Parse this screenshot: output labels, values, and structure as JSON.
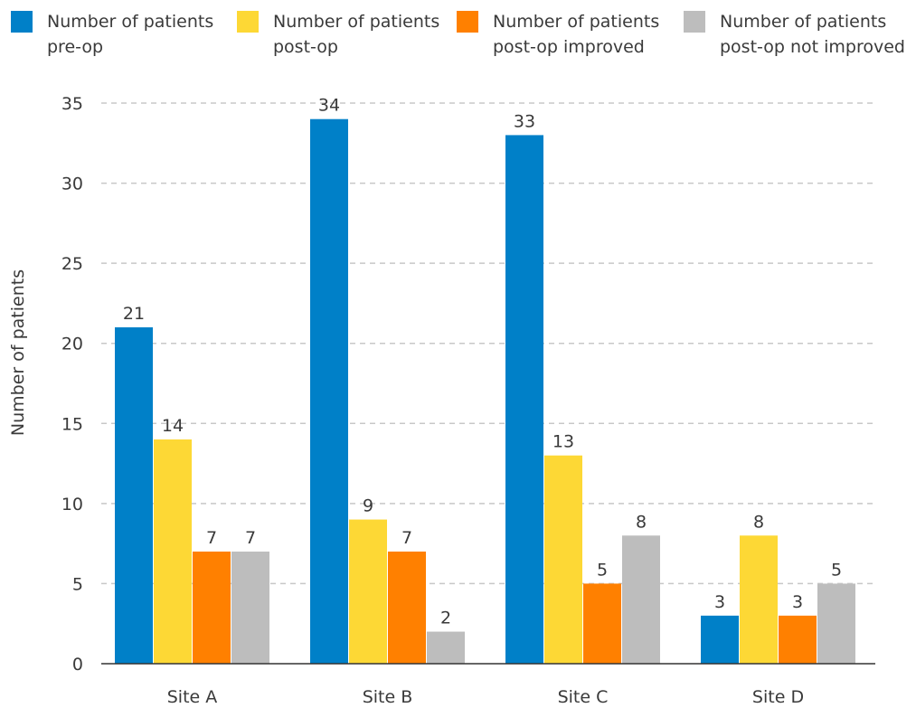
{
  "legend": {
    "items": [
      {
        "line1": "Number of patients",
        "line2": "pre-op",
        "color": "#0080C8"
      },
      {
        "line1": "Number of patients",
        "line2": "post-op",
        "color": "#FDD835"
      },
      {
        "line1": "Number of patients",
        "line2": "post-op improved",
        "color": "#FF8000"
      },
      {
        "line1": "Number of patients",
        "line2": "post-op not improved",
        "color": "#BDBDBD"
      }
    ]
  },
  "chart_data": {
    "type": "bar",
    "categories": [
      "Site A",
      "Site B",
      "Site C",
      "Site D"
    ],
    "series": [
      {
        "name": "Number of patients pre-op",
        "color": "#0080C8",
        "values": [
          21,
          34,
          33,
          3
        ]
      },
      {
        "name": "Number of patients post-op",
        "color": "#FDD835",
        "values": [
          14,
          9,
          13,
          8
        ]
      },
      {
        "name": "Number of patients post-op improved",
        "color": "#FF8000",
        "values": [
          7,
          7,
          5,
          3
        ]
      },
      {
        "name": "Number of patients post-op not improved",
        "color": "#BDBDBD",
        "values": [
          7,
          2,
          8,
          5
        ]
      }
    ],
    "yticks": [
      0,
      5,
      10,
      15,
      20,
      25,
      30,
      35
    ],
    "ylim": [
      0,
      35
    ],
    "ylabel": "Number of patients",
    "xlabel": "",
    "grid": true,
    "grid_style": "dashed",
    "legend_position": "top"
  }
}
